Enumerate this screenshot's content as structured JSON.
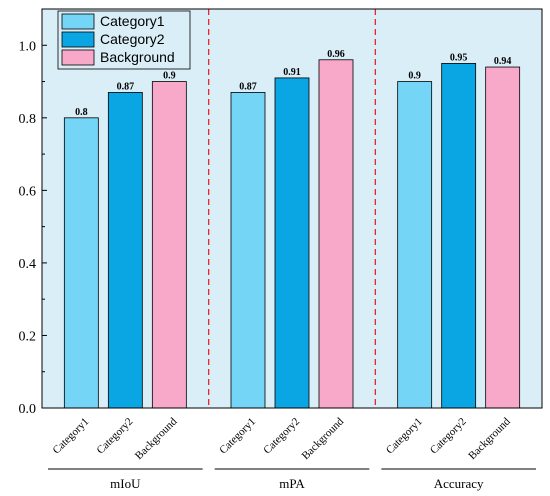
{
  "chart_data": {
    "type": "bar",
    "groups": [
      "mIoU",
      "mPA",
      "Accuracy"
    ],
    "categories": [
      "Category1",
      "Category2",
      "Background"
    ],
    "series": [
      {
        "name": "Category1",
        "color": "#75d5f7",
        "values": [
          0.8,
          0.87,
          0.9
        ],
        "labels": [
          "0.8",
          "0.87",
          "0.9"
        ]
      },
      {
        "name": "Category2",
        "color": "#0aa6e4",
        "values": [
          0.87,
          0.91,
          0.95
        ],
        "labels": [
          "0.87",
          "0.91",
          "0.95"
        ]
      },
      {
        "name": "Background",
        "color": "#f8a9c9",
        "values": [
          0.9,
          0.96,
          0.94
        ],
        "labels": [
          "0.9",
          "0.96",
          "0.94"
        ]
      }
    ],
    "ylim": [
      0,
      1.1
    ],
    "yticks": [
      0.0,
      0.2,
      0.4,
      0.6,
      0.8,
      1.0
    ],
    "ytick_labels": [
      "0.0",
      "0.2",
      "0.4",
      "0.6",
      "0.8",
      "1.0"
    ],
    "background_color": "#daeef8",
    "separator_color": "#e8232a",
    "legend_position": "top-left",
    "grid": false
  }
}
